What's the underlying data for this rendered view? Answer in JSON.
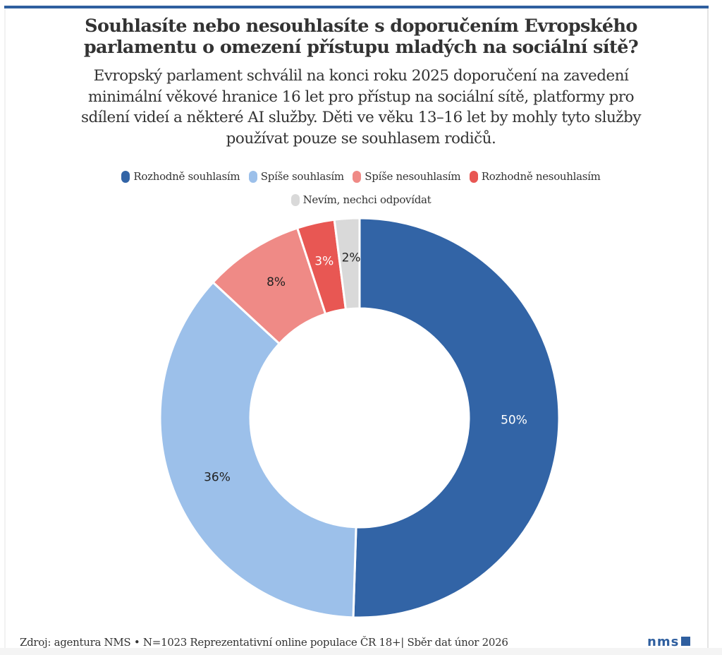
{
  "header": {
    "title_lines": [
      "Souhlasíte nebo nesouhlasíte s doporučením Evropského",
      "parlamentu o omezení přístupu mladých na sociální sítě?"
    ],
    "subtitle_lines": [
      "Evropský parlament schválil na konci roku 2025 doporučení na zavedení",
      "minimální věkové hranice 16 let pro přístup na sociální sítě, platformy pro",
      "sdílení videí a některé AI služby. Děti ve věku 13–16 let by mohly tyto služby",
      "používat pouze se souhlasem rodičů."
    ]
  },
  "chart_data": {
    "type": "pie",
    "variant": "donut",
    "title": "Souhlasíte nebo nesouhlasíte s doporučením Evropského parlamentu o omezení přístupu mladých na sociální sítě?",
    "categories": [
      "Rozhodně souhlasím",
      "Spíše souhlasím",
      "Spíše nesouhlasím",
      "Rozhodně nesouhlasím",
      "Nevím, nechci odpovídat"
    ],
    "values": [
      50,
      36,
      8,
      3,
      2
    ],
    "labels": [
      "50%",
      "36%",
      "8%",
      "3%",
      "2%"
    ],
    "colors": [
      "#3264a6",
      "#9cc0ea",
      "#ef8a86",
      "#e85753",
      "#d9d9d9"
    ],
    "label_colors": [
      "#ffffff",
      "#222222",
      "#222222",
      "#ffffff",
      "#222222"
    ],
    "unit": "%",
    "start": "top",
    "direction": "clockwise",
    "legend_position": "top"
  },
  "legend": {
    "row1": [
      {
        "label": "Rozhodně souhlasím",
        "color": "#3264a6"
      },
      {
        "label": "Spíše souhlasím",
        "color": "#9cc0ea"
      },
      {
        "label": "Spíše nesouhlasím",
        "color": "#ef8a86"
      },
      {
        "label": "Rozhodně nesouhlasím",
        "color": "#e85753"
      }
    ],
    "row2": [
      {
        "label": "Nevím, nechci odpovídat",
        "color": "#d9d9d9"
      }
    ]
  },
  "footer": {
    "source": "Zdroj: agentura NMS • N=1023 Reprezentativní online populace ČR 18+| Sběr dat únor 2026",
    "logo_text": "nms"
  },
  "colors": {
    "accent": "#2f5f9f",
    "text": "#333333"
  }
}
